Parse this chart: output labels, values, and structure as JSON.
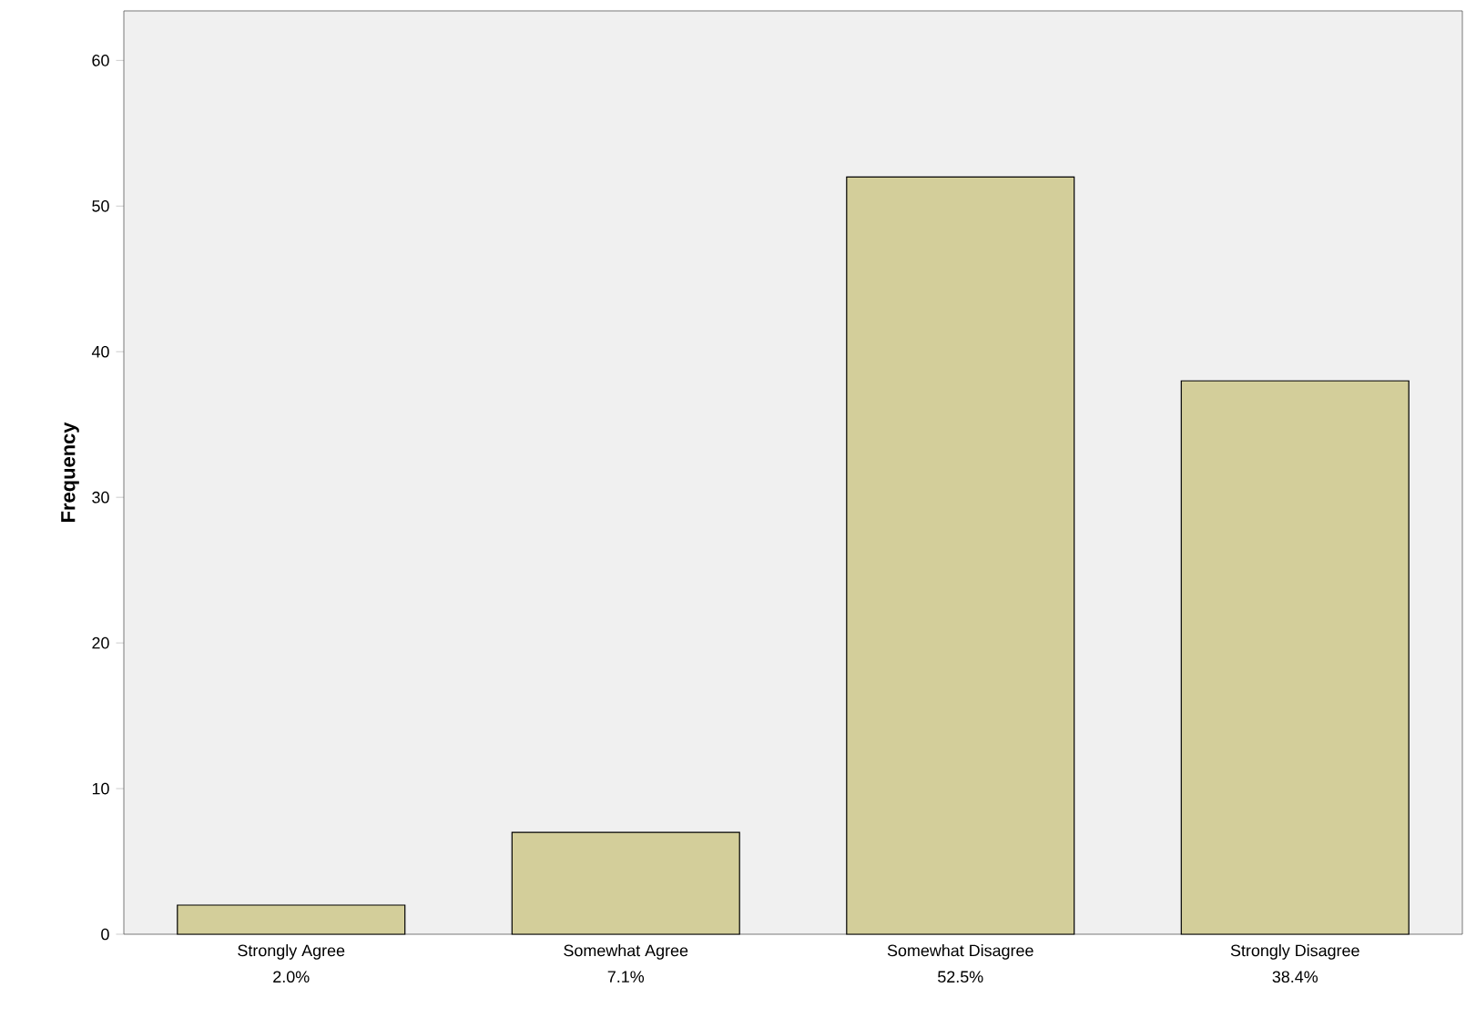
{
  "chart_data": {
    "type": "bar",
    "ylabel": "Frequency",
    "categories": [
      "Strongly Agree",
      "Somewhat Agree",
      "Somewhat Disagree",
      "Strongly Disagree"
    ],
    "values": [
      2,
      7,
      52,
      38
    ],
    "annotations": [
      "2.0%",
      "7.1%",
      "52.5%",
      "38.4%"
    ],
    "color": "#d3ce9a",
    "ylim": [
      0,
      63.4
    ],
    "yticks": [
      0,
      10,
      20,
      30,
      40,
      50,
      60
    ],
    "grid": false
  }
}
